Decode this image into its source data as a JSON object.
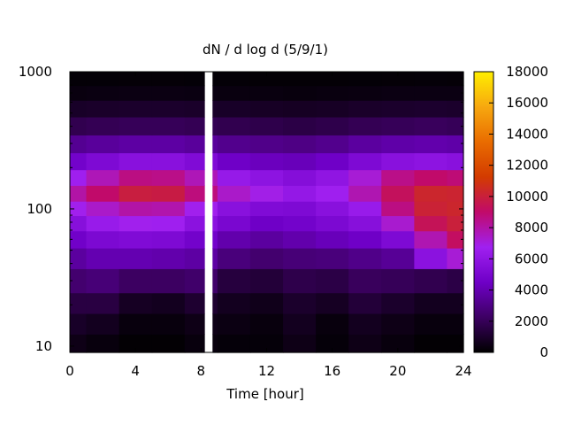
{
  "chart_data": {
    "type": "heatmap",
    "title": "dN / d log d (5/9/1)",
    "xlabel": "Time [hour]",
    "ylabel": "",
    "x_range": [
      0,
      24
    ],
    "y_range": [
      9,
      1000
    ],
    "y_scale": "log",
    "x_ticks": [
      0,
      4,
      8,
      12,
      16,
      20,
      24
    ],
    "y_ticks": [
      {
        "value": 10,
        "label": "10"
      },
      {
        "value": 100,
        "label": "100"
      },
      {
        "value": 1000,
        "label": "1000"
      }
    ],
    "colorbar": {
      "range": [
        0,
        18000
      ],
      "ticks": [
        0,
        2000,
        4000,
        6000,
        8000,
        10000,
        12000,
        14000,
        16000,
        18000
      ],
      "placement": "right",
      "colors": [
        "#000000",
        "#3d0063",
        "#6f00c7",
        "#a020f0",
        "#c10a6a",
        "#d33b00",
        "#e96c00",
        "#f7a80f",
        "#ffee00"
      ]
    },
    "data_gap_hours": [
      8.2,
      8.7
    ],
    "size_bins_nm": [
      10,
      15,
      20,
      30,
      45,
      60,
      80,
      100,
      130,
      170,
      220,
      300,
      400,
      550,
      700,
      900
    ],
    "time_hours": [
      0,
      2,
      4,
      6,
      8,
      10,
      12,
      14,
      16,
      18,
      20,
      22,
      24
    ],
    "values": [
      [
        500,
        300,
        100,
        100,
        300,
        200,
        200,
        500,
        200,
        500,
        300,
        100,
        100
      ],
      [
        900,
        700,
        300,
        300,
        500,
        400,
        300,
        700,
        300,
        700,
        500,
        300,
        300
      ],
      [
        1500,
        1500,
        800,
        700,
        1100,
        700,
        600,
        1000,
        800,
        1300,
        1000,
        700,
        700
      ],
      [
        2500,
        2700,
        2200,
        2200,
        2400,
        1400,
        1300,
        1700,
        1600,
        2100,
        2000,
        1800,
        1600
      ],
      [
        3600,
        4000,
        4000,
        3900,
        3700,
        2800,
        2500,
        2700,
        2800,
        3100,
        3400,
        5800,
        7200
      ],
      [
        4600,
        5100,
        5300,
        5200,
        4700,
        3900,
        3600,
        3900,
        4200,
        4500,
        5200,
        7800,
        9200
      ],
      [
        5600,
        6400,
        6800,
        6700,
        5800,
        5000,
        4500,
        4700,
        5100,
        5600,
        7300,
        9400,
        10000
      ],
      [
        6800,
        7400,
        8000,
        7900,
        6800,
        5700,
        5300,
        5200,
        5700,
        6400,
        8600,
        10100,
        10300
      ],
      [
        8000,
        9000,
        9900,
        9800,
        8700,
        7400,
        6900,
        6200,
        6700,
        7800,
        9300,
        10300,
        10200
      ],
      [
        6700,
        7700,
        8600,
        8500,
        7700,
        6300,
        5900,
        5500,
        6000,
        7200,
        8500,
        9000,
        8800
      ],
      [
        4700,
        5200,
        5700,
        5700,
        5300,
        4500,
        4300,
        4200,
        4500,
        5200,
        5700,
        5900,
        5700
      ],
      [
        3300,
        3500,
        3700,
        3700,
        3500,
        3200,
        3100,
        3000,
        3200,
        3600,
        3800,
        3900,
        3800
      ],
      [
        1800,
        1900,
        2000,
        2000,
        1900,
        1800,
        1700,
        1600,
        1700,
        1900,
        2000,
        2100,
        2000
      ],
      [
        900,
        950,
        1000,
        1000,
        950,
        900,
        850,
        800,
        850,
        950,
        1000,
        1050,
        1000
      ],
      [
        350,
        380,
        400,
        400,
        380,
        350,
        330,
        300,
        330,
        370,
        400,
        420,
        400
      ],
      [
        150,
        160,
        170,
        170,
        160,
        150,
        140,
        130,
        140,
        160,
        170,
        180,
        170
      ]
    ]
  }
}
